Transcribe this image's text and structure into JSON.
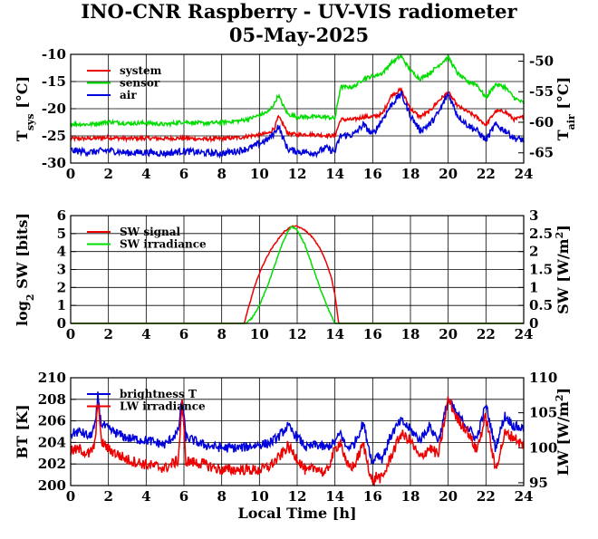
{
  "title": "INO-CNR Raspberry - UV-VIS radiometer",
  "subtitle": "05-May-2025",
  "xlabel": "Local Time [h]",
  "colors": {
    "red": "#ee0000",
    "green": "#00dd00",
    "blue": "#0000dd"
  },
  "chart_data": [
    {
      "type": "line",
      "ylabel_left": {
        "main": "T",
        "sub": "sys",
        "tail": " [°C]"
      },
      "ylabel_right": {
        "main": "T",
        "sub": "air",
        "tail": " [°C]"
      },
      "xlim": [
        0,
        24
      ],
      "ylim": [
        -30,
        -10
      ],
      "ylim_right": [
        -66.67,
        -48.89
      ],
      "xticks": [
        0,
        2,
        4,
        6,
        8,
        10,
        12,
        14,
        16,
        18,
        20,
        22,
        24
      ],
      "yticks": [
        -30,
        -25,
        -20,
        -15,
        -10
      ],
      "yticks_right": [
        -65,
        -60,
        -55,
        -50
      ],
      "grid": true,
      "legend_position": "top-left",
      "series": [
        {
          "name": "system",
          "color": "red",
          "axis": "left",
          "x": [
            0,
            1,
            2,
            3,
            4,
            5,
            6,
            7,
            8,
            9,
            9.5,
            10,
            10.5,
            10.8,
            11,
            11.2,
            11.5,
            12,
            12.5,
            13,
            13.5,
            14,
            14.3,
            15,
            15.5,
            16,
            16.5,
            17,
            17.5,
            18,
            18.5,
            19,
            19.5,
            20,
            20.5,
            21,
            21.5,
            22,
            22.5,
            23,
            23.5,
            24
          ],
          "y": [
            -25.5,
            -25.5,
            -25.3,
            -25.5,
            -25.4,
            -25.5,
            -25.4,
            -25.6,
            -25.5,
            -25.3,
            -25,
            -24.8,
            -24.5,
            -23.5,
            -21.5,
            -22.5,
            -24.5,
            -24.8,
            -24.7,
            -24.8,
            -24.9,
            -25,
            -22,
            -22,
            -21.5,
            -21.5,
            -21,
            -17.5,
            -16.5,
            -20,
            -21.5,
            -20.5,
            -18.5,
            -17,
            -19.5,
            -20.5,
            -21.5,
            -23,
            -20.5,
            -20.5,
            -22,
            -21.5
          ]
        },
        {
          "name": "sensor",
          "color": "green",
          "axis": "left",
          "x": [
            0,
            1,
            2,
            3,
            4,
            5,
            6,
            7,
            8,
            9,
            9.5,
            10,
            10.5,
            10.8,
            11,
            11.2,
            11.5,
            12,
            12.5,
            13,
            13.5,
            14,
            14.3,
            15,
            15.5,
            16,
            16.5,
            17,
            17.5,
            18,
            18.5,
            19,
            19.5,
            20,
            20.5,
            21,
            21.5,
            22,
            22.5,
            23,
            23.5,
            24
          ],
          "y": [
            -22.8,
            -22.9,
            -22.4,
            -22.7,
            -22.6,
            -22.9,
            -22.4,
            -22.7,
            -22.5,
            -22.2,
            -21.8,
            -21.2,
            -20.5,
            -19,
            -17.5,
            -19,
            -21,
            -21.5,
            -21.5,
            -21.5,
            -21.5,
            -21.8,
            -16,
            -16,
            -14.5,
            -14,
            -13.5,
            -11.5,
            -10.3,
            -13,
            -14.5,
            -13.5,
            -12,
            -10.5,
            -13.5,
            -15,
            -15.5,
            -18,
            -15.5,
            -16,
            -18,
            -19
          ]
        },
        {
          "name": "air",
          "color": "blue",
          "axis": "right",
          "x": [
            0,
            1,
            2,
            3,
            4,
            5,
            6,
            7,
            8,
            9,
            9.5,
            10,
            10.5,
            10.8,
            11,
            11.2,
            11.5,
            12,
            12.5,
            13,
            13.5,
            14,
            14.3,
            15,
            15.5,
            16,
            16.5,
            17,
            17.5,
            18,
            18.5,
            19,
            19.5,
            20,
            20.5,
            21,
            21.5,
            22,
            22.5,
            23,
            23.5,
            24
          ],
          "y": [
            -64.6,
            -64.9,
            -64.6,
            -65,
            -64.9,
            -65.1,
            -64.7,
            -65,
            -65.1,
            -64.6,
            -64.2,
            -63.5,
            -62.7,
            -61.7,
            -60.5,
            -62.2,
            -64.4,
            -64.8,
            -64.9,
            -65,
            -64.2,
            -64.8,
            -62.2,
            -62,
            -60.4,
            -62,
            -59.6,
            -57.1,
            -55.3,
            -58.9,
            -61.3,
            -60.4,
            -58.4,
            -55.3,
            -58.9,
            -60.4,
            -61.3,
            -62.9,
            -60.4,
            -61.3,
            -62.6,
            -62.9
          ]
        }
      ]
    },
    {
      "type": "line",
      "ylabel_left": {
        "main": "log",
        "sub": "2",
        "tail": " SW [bits]"
      },
      "ylabel_right": {
        "main": "SW [W/m",
        "sup": "2",
        "tail": "]"
      },
      "xlim": [
        0,
        24
      ],
      "ylim": [
        0,
        6
      ],
      "ylim_right": [
        0,
        3
      ],
      "xticks": [
        0,
        2,
        4,
        6,
        8,
        10,
        12,
        14,
        16,
        18,
        20,
        22,
        24
      ],
      "yticks": [
        0,
        1,
        2,
        3,
        4,
        5,
        6
      ],
      "yticks_right": [
        "0",
        "0.5",
        "1",
        "1.5",
        "2",
        "2.5",
        "3"
      ],
      "grid": true,
      "legend_position": "top-left",
      "series": [
        {
          "name": "SW signal",
          "color": "red",
          "axis": "left",
          "x": [
            0,
            9.2,
            9.4,
            9.7,
            10,
            10.3,
            10.6,
            11,
            11.3,
            11.7,
            12,
            12.4,
            12.8,
            13.2,
            13.5,
            13.8,
            14,
            14.2,
            24
          ],
          "y": [
            0,
            0,
            0.8,
            1.9,
            2.8,
            3.5,
            4.1,
            4.7,
            5.1,
            5.4,
            5.4,
            5.2,
            4.8,
            4.2,
            3.5,
            2.6,
            1.6,
            0,
            0
          ]
        },
        {
          "name": "SW irradiance",
          "color": "green",
          "axis": "right",
          "x": [
            0,
            9.3,
            9.6,
            10,
            10.4,
            10.8,
            11.2,
            11.5,
            11.7,
            12,
            12.4,
            12.8,
            13.2,
            13.6,
            14,
            24
          ],
          "y": [
            0,
            0,
            0.15,
            0.5,
            1.0,
            1.6,
            2.2,
            2.55,
            2.7,
            2.6,
            2.2,
            1.6,
            1.0,
            0.45,
            0,
            0
          ]
        }
      ]
    },
    {
      "type": "line",
      "ylabel_left": {
        "main": "BT [K]"
      },
      "ylabel_right": {
        "main": "LW [W/m",
        "sup": "2",
        "tail": "]"
      },
      "xlim": [
        0,
        24
      ],
      "ylim": [
        200,
        210
      ],
      "ylim_right": [
        94.6,
        110
      ],
      "xticks": [
        0,
        2,
        4,
        6,
        8,
        10,
        12,
        14,
        16,
        18,
        20,
        22,
        24
      ],
      "yticks": [
        200,
        202,
        204,
        206,
        208,
        210
      ],
      "yticks_right": [
        95,
        100,
        105,
        110
      ],
      "grid": true,
      "legend_position": "top-left",
      "series": [
        {
          "name": "brightness T",
          "color": "blue",
          "axis": "left",
          "x": [
            0,
            0.5,
            1,
            1.3,
            1.45,
            1.6,
            2,
            3,
            4,
            5,
            5.7,
            5.9,
            6.1,
            7,
            8,
            9,
            10,
            10.5,
            11,
            11.5,
            12,
            12.5,
            13,
            13.5,
            14,
            14.3,
            14.6,
            15,
            15.5,
            16,
            16.2,
            16.5,
            17,
            17.5,
            18,
            18.5,
            19,
            19.5,
            20,
            20.5,
            21,
            21.5,
            22,
            22.5,
            23,
            23.5,
            24
          ],
          "y": [
            204.8,
            205,
            204.5,
            205.5,
            208.5,
            205.8,
            205.2,
            204.4,
            204.2,
            203.8,
            205,
            208.2,
            204.5,
            203.8,
            203.5,
            203.5,
            203.8,
            203.9,
            204.5,
            205.5,
            204.5,
            203.5,
            203.8,
            203.5,
            204,
            204.9,
            203.5,
            203.8,
            205.8,
            202,
            203,
            202.5,
            204.8,
            206,
            205.2,
            204.2,
            205.5,
            204.2,
            208,
            206.5,
            205.5,
            204.3,
            207.5,
            203.5,
            206.5,
            205.5,
            205.3
          ]
        },
        {
          "name": "LW irradiance",
          "color": "red",
          "axis": "right",
          "x": [
            0,
            0.5,
            1,
            1.3,
            1.45,
            1.6,
            2,
            3,
            4,
            5,
            5.7,
            5.9,
            6.1,
            7,
            8,
            9,
            10,
            10.5,
            11,
            11.5,
            12,
            12.5,
            13,
            13.5,
            14,
            14.3,
            14.6,
            15,
            15.5,
            16,
            16.2,
            16.5,
            17,
            17.5,
            18,
            18.5,
            19,
            19.5,
            20,
            20.5,
            21,
            21.5,
            22,
            22.5,
            23,
            23.5,
            24
          ],
          "y": [
            99.5,
            99.8,
            99,
            100.6,
            107.5,
            101,
            99.8,
            98.3,
            97.6,
            97.1,
            98.2,
            106.5,
            98.1,
            97.7,
            96.8,
            96.9,
            96.8,
            97.3,
            98.5,
            100.2,
            98.5,
            96.5,
            97.3,
            96.2,
            99.7,
            101,
            97.5,
            97.3,
            100.5,
            94.8,
            96,
            95.5,
            99,
            102,
            101,
            98.5,
            100,
            99,
            107,
            104,
            102.5,
            99.6,
            104.5,
            96.8,
            102,
            101.5,
            100.2
          ]
        }
      ]
    }
  ]
}
